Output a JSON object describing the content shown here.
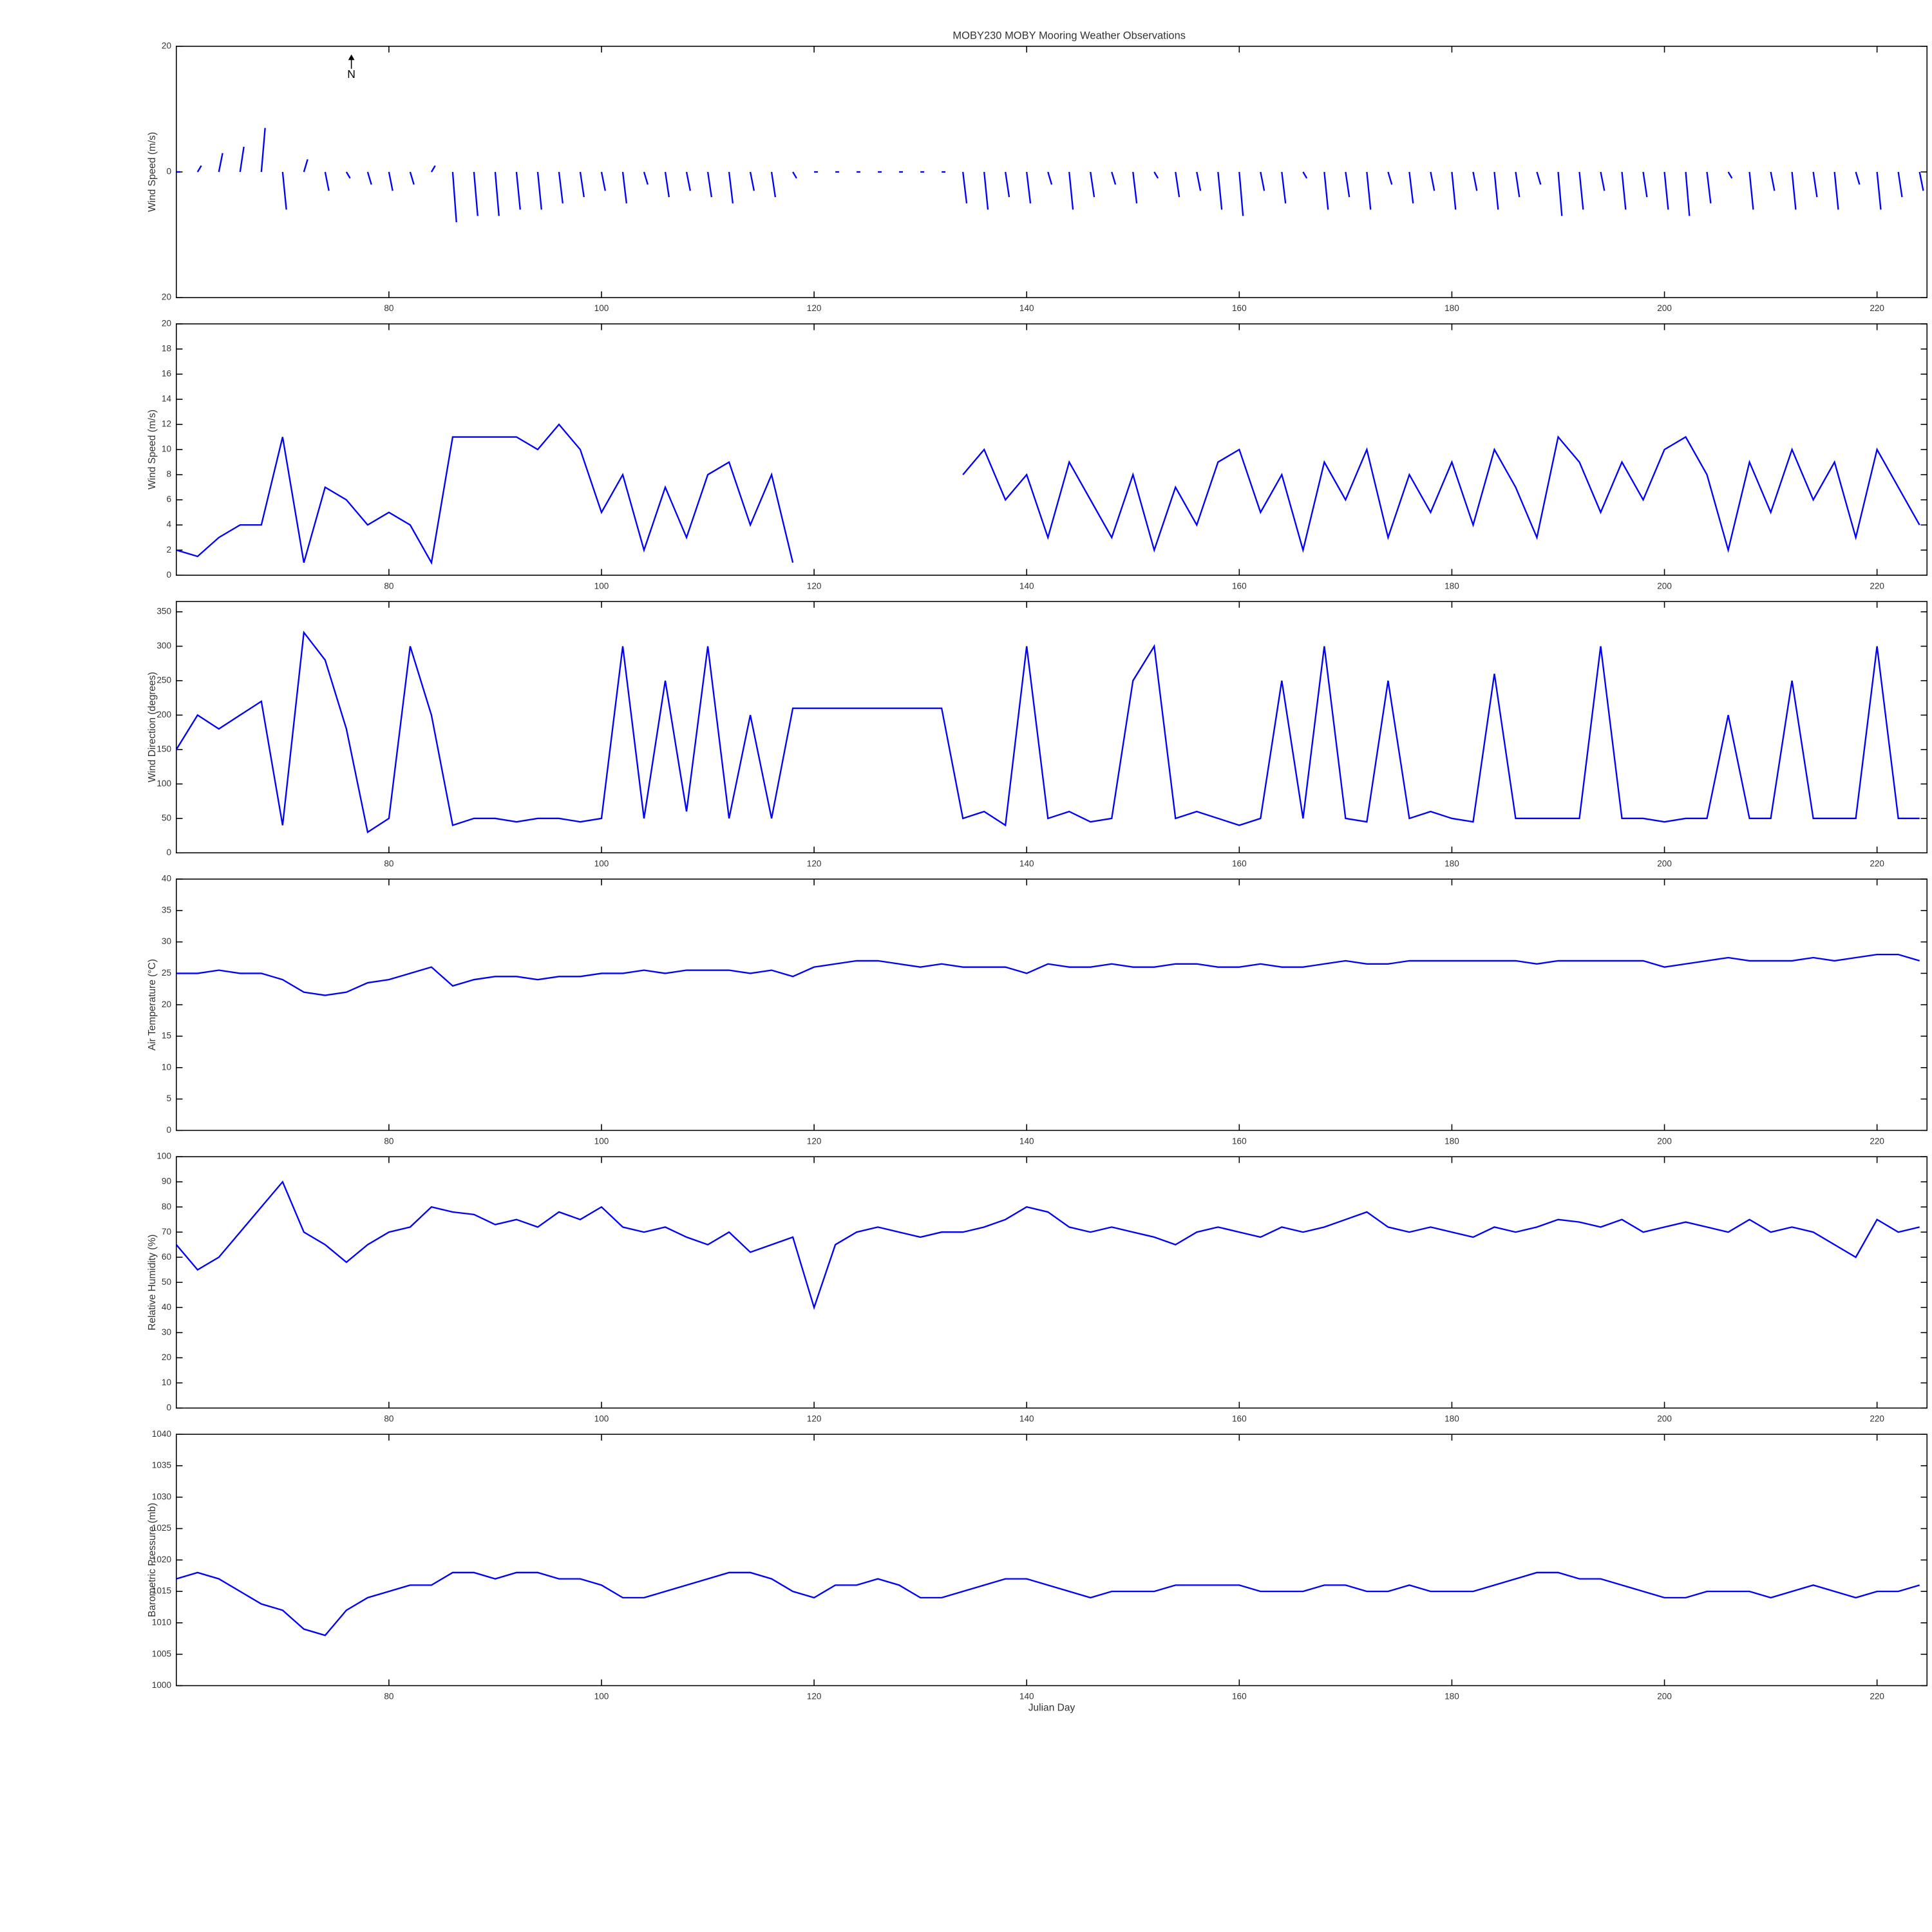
{
  "chart_data": [
    {
      "type": "stick",
      "title": "MOBY230 MOBY Mooring Weather Observations",
      "ylabel": "Wind Speed (m/s)",
      "annotation": "N",
      "color": "#0000ff",
      "x": [
        60,
        62,
        64,
        66,
        68,
        70,
        72,
        74,
        76,
        78,
        80,
        82,
        84,
        86,
        88,
        90,
        92,
        94,
        96,
        98,
        100,
        102,
        104,
        106,
        108,
        110,
        112,
        114,
        116,
        118,
        120,
        122,
        124,
        126,
        128,
        130,
        132,
        134,
        136,
        138,
        140,
        142,
        144,
        146,
        148,
        150,
        152,
        154,
        156,
        158,
        160,
        162,
        164,
        166,
        168,
        170,
        172,
        174,
        176,
        178,
        180,
        182,
        184,
        186,
        188,
        190,
        192,
        194,
        196,
        198,
        200,
        202,
        204,
        206,
        208,
        210,
        212,
        214,
        216,
        218,
        220,
        222,
        224
      ],
      "values": [
        0,
        1,
        3,
        4,
        7,
        -6,
        2,
        -3,
        -1,
        -2,
        -3,
        -2,
        1,
        -8,
        -7,
        -7,
        -6,
        -6,
        -5,
        -4,
        -3,
        -5,
        -2,
        -4,
        -3,
        -4,
        -5,
        -3,
        -4,
        -1,
        0,
        0,
        0,
        0,
        0,
        0,
        0,
        -5,
        -6,
        -4,
        -5,
        -2,
        -6,
        -4,
        -2,
        -5,
        -1,
        -4,
        -3,
        -6,
        -7,
        -3,
        -5,
        -1,
        -6,
        -4,
        -6,
        -2,
        -5,
        -3,
        -6,
        -3,
        -6,
        -4,
        -2,
        -7,
        -6,
        -3,
        -6,
        -4,
        -6,
        -7,
        -5,
        -1,
        -6,
        -3,
        -6,
        -4,
        -6,
        -2,
        -6,
        -4,
        -3
      ],
      "xlim": [
        60,
        224.7
      ],
      "xticks": [
        80,
        100,
        120,
        140,
        160,
        180,
        200,
        220
      ],
      "ylim": [
        -20,
        20
      ],
      "yticks": [
        {
          "value": -20,
          "label": "20"
        },
        0,
        20
      ]
    },
    {
      "type": "line",
      "ylabel": "Wind Speed (m/s)",
      "color": "#0000ff",
      "x": [
        60,
        62,
        64,
        66,
        68,
        70,
        72,
        74,
        76,
        78,
        80,
        82,
        84,
        86,
        88,
        90,
        92,
        94,
        96,
        98,
        100,
        102,
        104,
        106,
        108,
        110,
        112,
        114,
        116,
        118,
        120,
        122,
        124,
        126,
        128,
        130,
        132,
        134,
        136,
        138,
        140,
        142,
        144,
        146,
        148,
        150,
        152,
        154,
        156,
        158,
        160,
        162,
        164,
        166,
        168,
        170,
        172,
        174,
        176,
        178,
        180,
        182,
        184,
        186,
        188,
        190,
        192,
        194,
        196,
        198,
        200,
        202,
        204,
        206,
        208,
        210,
        212,
        214,
        216,
        218,
        220,
        222,
        224
      ],
      "values": [
        2,
        1.5,
        3,
        4,
        4,
        11,
        1,
        7,
        6,
        4,
        5,
        4,
        1,
        11,
        11,
        11,
        11,
        10,
        12,
        10,
        5,
        8,
        2,
        7,
        3,
        8,
        9,
        4,
        8,
        1,
        null,
        null,
        null,
        null,
        null,
        null,
        null,
        8,
        10,
        6,
        8,
        3,
        9,
        6,
        3,
        8,
        2,
        7,
        4,
        9,
        10,
        5,
        8,
        2,
        9,
        6,
        10,
        3,
        8,
        5,
        9,
        4,
        10,
        7,
        3,
        11,
        9,
        5,
        9,
        6,
        10,
        11,
        8,
        2,
        9,
        5,
        10,
        6,
        9,
        3,
        10,
        7,
        4
      ],
      "xlim": [
        60,
        224.7
      ],
      "xticks": [
        80,
        100,
        120,
        140,
        160,
        180,
        200,
        220
      ],
      "ylim": [
        0,
        20
      ],
      "yticks": [
        0,
        2,
        4,
        6,
        8,
        10,
        12,
        14,
        16,
        18,
        20
      ]
    },
    {
      "type": "line",
      "ylabel": "Wind Direction (degrees)",
      "color": "#0000ff",
      "x": [
        60,
        62,
        64,
        66,
        68,
        70,
        72,
        74,
        76,
        78,
        80,
        82,
        84,
        86,
        88,
        90,
        92,
        94,
        96,
        98,
        100,
        102,
        104,
        106,
        108,
        110,
        112,
        114,
        116,
        118,
        120,
        122,
        124,
        126,
        128,
        130,
        132,
        134,
        136,
        138,
        140,
        142,
        144,
        146,
        148,
        150,
        152,
        154,
        156,
        158,
        160,
        162,
        164,
        166,
        168,
        170,
        172,
        174,
        176,
        178,
        180,
        182,
        184,
        186,
        188,
        190,
        192,
        194,
        196,
        198,
        200,
        202,
        204,
        206,
        208,
        210,
        212,
        214,
        216,
        218,
        220,
        222,
        224
      ],
      "values": [
        150,
        200,
        180,
        200,
        220,
        40,
        320,
        280,
        180,
        30,
        50,
        300,
        200,
        40,
        50,
        50,
        45,
        50,
        50,
        45,
        50,
        300,
        50,
        250,
        60,
        300,
        50,
        200,
        50,
        210,
        210,
        210,
        210,
        210,
        210,
        210,
        210,
        50,
        60,
        40,
        300,
        50,
        60,
        45,
        50,
        250,
        300,
        50,
        60,
        50,
        40,
        50,
        250,
        50,
        300,
        50,
        45,
        250,
        50,
        60,
        50,
        45,
        260,
        50,
        50,
        50,
        50,
        300,
        50,
        50,
        45,
        50,
        50,
        200,
        50,
        50,
        250,
        50,
        50,
        50,
        300,
        50,
        50
      ],
      "xlim": [
        60,
        224.7
      ],
      "xticks": [
        80,
        100,
        120,
        140,
        160,
        180,
        200,
        220
      ],
      "ylim": [
        0,
        365
      ],
      "yticks": [
        0,
        50,
        100,
        150,
        200,
        250,
        300,
        350
      ]
    },
    {
      "type": "line",
      "ylabel": "Air Temperature (°C)",
      "color": "#0000ff",
      "x": [
        60,
        62,
        64,
        66,
        68,
        70,
        72,
        74,
        76,
        78,
        80,
        82,
        84,
        86,
        88,
        90,
        92,
        94,
        96,
        98,
        100,
        102,
        104,
        106,
        108,
        110,
        112,
        114,
        116,
        118,
        120,
        122,
        124,
        126,
        128,
        130,
        132,
        134,
        136,
        138,
        140,
        142,
        144,
        146,
        148,
        150,
        152,
        154,
        156,
        158,
        160,
        162,
        164,
        166,
        168,
        170,
        172,
        174,
        176,
        178,
        180,
        182,
        184,
        186,
        188,
        190,
        192,
        194,
        196,
        198,
        200,
        202,
        204,
        206,
        208,
        210,
        212,
        214,
        216,
        218,
        220,
        222,
        224
      ],
      "values": [
        25,
        25,
        25.5,
        25,
        25,
        24,
        22,
        21.5,
        22,
        23.5,
        24,
        25,
        26,
        23,
        24,
        24.5,
        24.5,
        24,
        24.5,
        24.5,
        25,
        25,
        25.5,
        25,
        25.5,
        25.5,
        25.5,
        25,
        25.5,
        24.5,
        26,
        26.5,
        27,
        27,
        26.5,
        26,
        26.5,
        26,
        26,
        26,
        25,
        26.5,
        26,
        26,
        26.5,
        26,
        26,
        26.5,
        26.5,
        26,
        26,
        26.5,
        26,
        26,
        26.5,
        27,
        26.5,
        26.5,
        27,
        27,
        27,
        27,
        27,
        27,
        26.5,
        27,
        27,
        27,
        27,
        27,
        26,
        26.5,
        27,
        27.5,
        27,
        27,
        27,
        27.5,
        27,
        27.5,
        28,
        28,
        27
      ],
      "xlim": [
        60,
        224.7
      ],
      "xticks": [
        80,
        100,
        120,
        140,
        160,
        180,
        200,
        220
      ],
      "ylim": [
        0,
        40
      ],
      "yticks": [
        0,
        5,
        10,
        15,
        20,
        25,
        30,
        35,
        40
      ]
    },
    {
      "type": "line",
      "ylabel": "Relative Humidity (%)",
      "color": "#0000ff",
      "x": [
        60,
        62,
        64,
        66,
        68,
        70,
        72,
        74,
        76,
        78,
        80,
        82,
        84,
        86,
        88,
        90,
        92,
        94,
        96,
        98,
        100,
        102,
        104,
        106,
        108,
        110,
        112,
        114,
        116,
        118,
        120,
        122,
        124,
        126,
        128,
        130,
        132,
        134,
        136,
        138,
        140,
        142,
        144,
        146,
        148,
        150,
        152,
        154,
        156,
        158,
        160,
        162,
        164,
        166,
        168,
        170,
        172,
        174,
        176,
        178,
        180,
        182,
        184,
        186,
        188,
        190,
        192,
        194,
        196,
        198,
        200,
        202,
        204,
        206,
        208,
        210,
        212,
        214,
        216,
        218,
        220,
        222,
        224
      ],
      "values": [
        65,
        55,
        60,
        70,
        80,
        90,
        70,
        65,
        58,
        65,
        70,
        72,
        80,
        78,
        77,
        73,
        75,
        72,
        78,
        75,
        80,
        72,
        70,
        72,
        68,
        65,
        70,
        62,
        65,
        68,
        40,
        65,
        70,
        72,
        70,
        68,
        70,
        70,
        72,
        75,
        80,
        78,
        72,
        70,
        72,
        70,
        68,
        65,
        70,
        72,
        70,
        68,
        72,
        70,
        72,
        75,
        78,
        72,
        70,
        72,
        70,
        68,
        72,
        70,
        72,
        75,
        74,
        72,
        75,
        70,
        72,
        74,
        72,
        70,
        75,
        70,
        72,
        70,
        65,
        60,
        75,
        70,
        72
      ],
      "xlim": [
        60,
        224.7
      ],
      "xticks": [
        80,
        100,
        120,
        140,
        160,
        180,
        200,
        220
      ],
      "ylim": [
        0,
        100
      ],
      "yticks": [
        0,
        10,
        20,
        30,
        40,
        50,
        60,
        70,
        80,
        90,
        100
      ]
    },
    {
      "type": "line",
      "ylabel": "Barometric Pressure (mb)",
      "xlabel": "Julian Day",
      "color": "#0000ff",
      "x": [
        60,
        62,
        64,
        66,
        68,
        70,
        72,
        74,
        76,
        78,
        80,
        82,
        84,
        86,
        88,
        90,
        92,
        94,
        96,
        98,
        100,
        102,
        104,
        106,
        108,
        110,
        112,
        114,
        116,
        118,
        120,
        122,
        124,
        126,
        128,
        130,
        132,
        134,
        136,
        138,
        140,
        142,
        144,
        146,
        148,
        150,
        152,
        154,
        156,
        158,
        160,
        162,
        164,
        166,
        168,
        170,
        172,
        174,
        176,
        178,
        180,
        182,
        184,
        186,
        188,
        190,
        192,
        194,
        196,
        198,
        200,
        202,
        204,
        206,
        208,
        210,
        212,
        214,
        216,
        218,
        220,
        222,
        224
      ],
      "values": [
        1017,
        1018,
        1017,
        1015,
        1013,
        1012,
        1009,
        1008,
        1012,
        1014,
        1015,
        1016,
        1016,
        1018,
        1018,
        1017,
        1018,
        1018,
        1017,
        1017,
        1016,
        1014,
        1014,
        1015,
        1016,
        1017,
        1018,
        1018,
        1017,
        1015,
        1014,
        1016,
        1016,
        1017,
        1016,
        1014,
        1014,
        1015,
        1016,
        1017,
        1017,
        1016,
        1015,
        1014,
        1015,
        1015,
        1015,
        1016,
        1016,
        1016,
        1016,
        1015,
        1015,
        1015,
        1016,
        1016,
        1015,
        1015,
        1016,
        1015,
        1015,
        1015,
        1016,
        1017,
        1018,
        1018,
        1017,
        1017,
        1016,
        1015,
        1014,
        1014,
        1015,
        1015,
        1015,
        1014,
        1015,
        1016,
        1015,
        1014,
        1015,
        1015,
        1016
      ],
      "xlim": [
        60,
        224.7
      ],
      "xticks": [
        80,
        100,
        120,
        140,
        160,
        180,
        200,
        220
      ],
      "ylim": [
        1000,
        1040
      ],
      "yticks": [
        1000,
        1005,
        1010,
        1015,
        1020,
        1025,
        1030,
        1035,
        1040
      ]
    }
  ]
}
